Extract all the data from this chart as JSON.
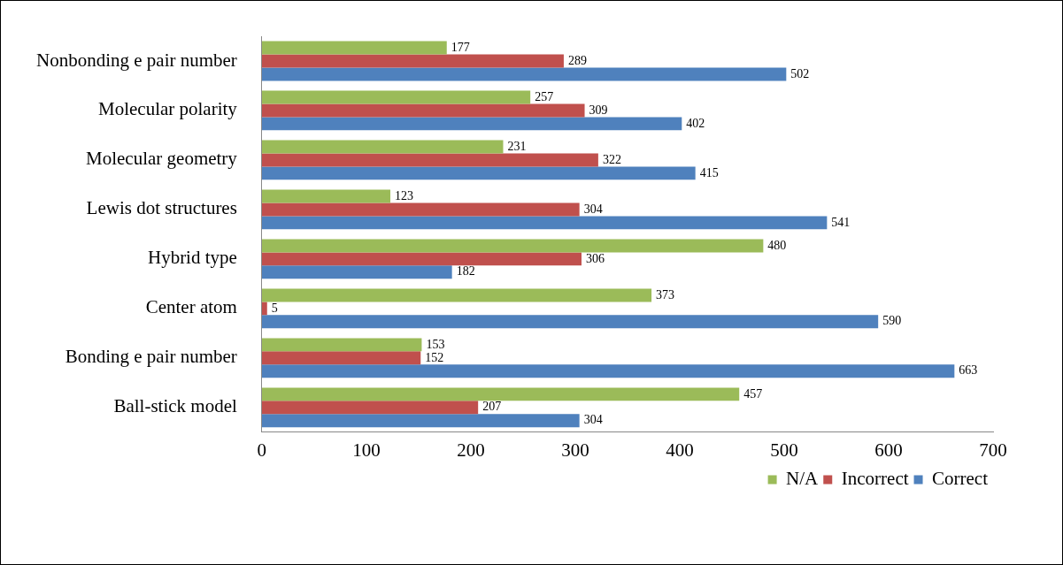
{
  "chart_data": {
    "type": "bar",
    "orientation": "horizontal",
    "categories": [
      "Nonbonding e pair number",
      "Molecular polarity",
      "Molecular geometry",
      "Lewis dot structures",
      "Hybrid type",
      "Center atom",
      "Bonding e pair number",
      "Ball-stick model"
    ],
    "series": [
      {
        "name": "N/A",
        "color": "#9bbb59",
        "values": [
          177,
          257,
          231,
          123,
          480,
          373,
          153,
          457
        ]
      },
      {
        "name": "Incorrect",
        "color": "#c0504d",
        "values": [
          289,
          309,
          322,
          304,
          306,
          5,
          152,
          207
        ]
      },
      {
        "name": "Correct",
        "color": "#4f81bd",
        "values": [
          502,
          402,
          415,
          541,
          182,
          590,
          663,
          304
        ]
      }
    ],
    "xlim": [
      0,
      700
    ],
    "xticks": [
      0,
      100,
      200,
      300,
      400,
      500,
      600,
      700
    ],
    "data_labels": true,
    "legend": "bottom right",
    "grid": false
  }
}
